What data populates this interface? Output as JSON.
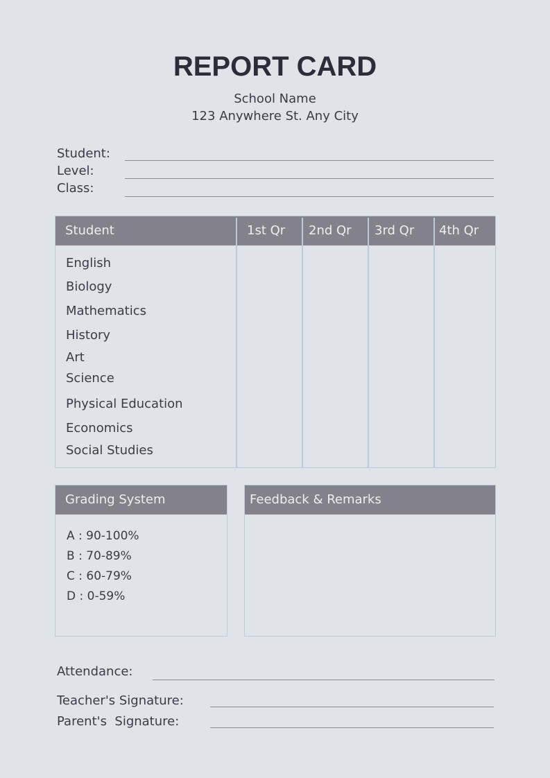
{
  "header": {
    "title": "REPORT CARD",
    "school_name": "School Name",
    "address": "123 Anywhere St. Any City"
  },
  "info_fields": {
    "student": "Student:",
    "level": "Level:",
    "class": "Class:"
  },
  "grades_table": {
    "columns": [
      "Student",
      "1st Qr",
      "2nd Qr",
      "3rd Qr",
      "4th Qr"
    ],
    "subjects": [
      "English",
      "Biology",
      "Mathematics",
      "History",
      "Art",
      "Science",
      "Physical Education",
      "Economics",
      "Social Studies"
    ]
  },
  "grading_system": {
    "title": "Grading System",
    "items": [
      "A : 90-100%",
      "B : 70-89%",
      "C : 60-79%",
      "D : 0-59%"
    ]
  },
  "feedback": {
    "title": "Feedback & Remarks"
  },
  "footer": {
    "attendance": "Attendance:",
    "teacher_signature": "Teacher's Signature:",
    "parent_signature": "Parent's  Signature:"
  },
  "colors": {
    "background": "#e0e3e8",
    "header_fill": "#83828a",
    "border": "#bccbd8",
    "text": "#3b3b46"
  }
}
